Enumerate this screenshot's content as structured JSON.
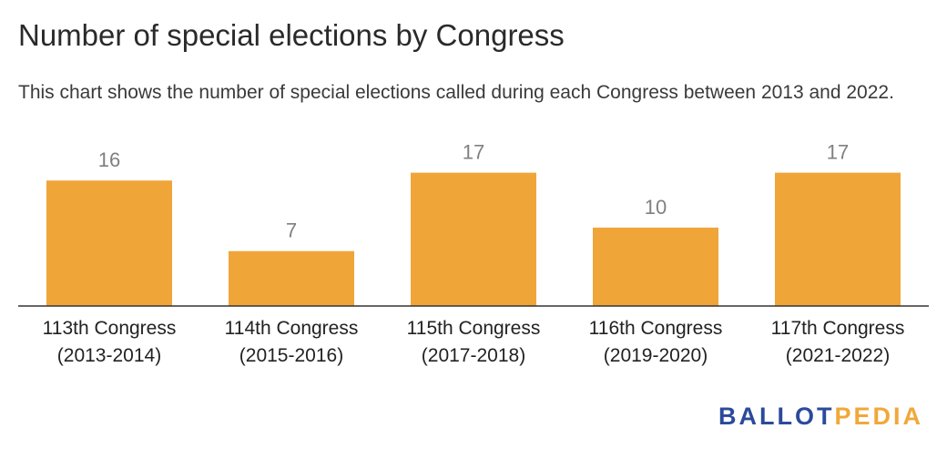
{
  "title": "Number of special elections by Congress",
  "subtitle": "This chart shows the number of special elections called during each Congress between 2013 and 2022.",
  "brand": {
    "part1": "BALLOT",
    "part2": "PEDIA"
  },
  "colors": {
    "bar": "#f0a539",
    "axis": "#333333",
    "value_label": "#808080",
    "tick_label": "#222222"
  },
  "chart_data": {
    "type": "bar",
    "title": "Number of special elections by Congress",
    "subtitle": "This chart shows the number of special elections called during each Congress between 2013 and 2022.",
    "categories": [
      [
        "113th Congress",
        "(2013-2014)"
      ],
      [
        "114th Congress",
        "(2015-2016)"
      ],
      [
        "115th Congress",
        "(2017-2018)"
      ],
      [
        "116th Congress",
        "(2019-2020)"
      ],
      [
        "117th Congress",
        "(2021-2022)"
      ]
    ],
    "values": [
      16,
      7,
      17,
      10,
      17
    ],
    "xlabel": "",
    "ylabel": "",
    "ylim": [
      0,
      18
    ],
    "grid": false,
    "legend": "none",
    "data_labels": true
  }
}
